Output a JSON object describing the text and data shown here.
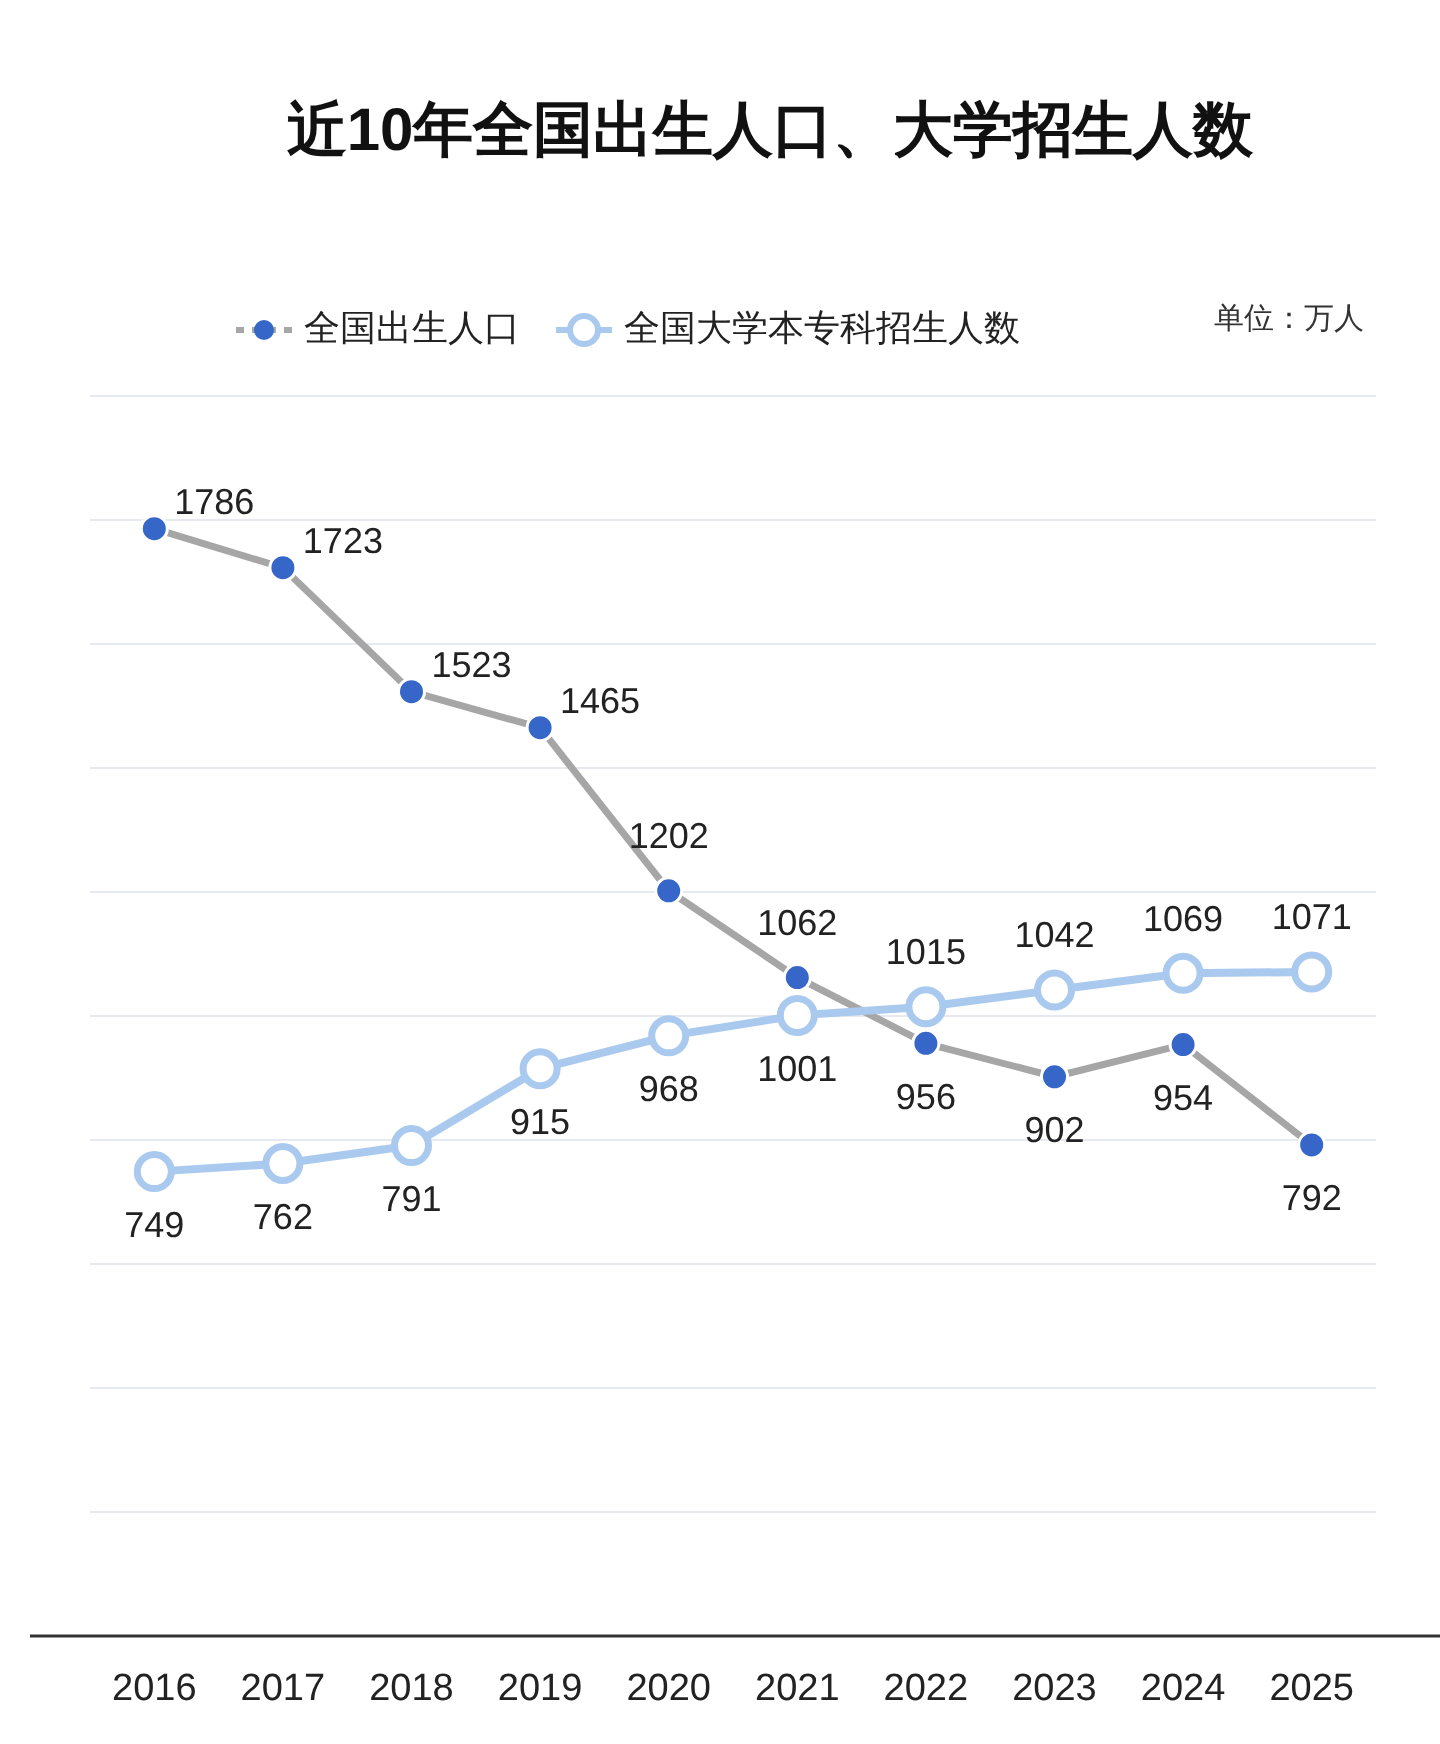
{
  "chart_data": {
    "type": "line",
    "title": "近10年全国出生人口、大学招生人数",
    "categories": [
      "2016",
      "2017",
      "2018",
      "2019",
      "2020",
      "2021",
      "2022",
      "2023",
      "2024",
      "2025"
    ],
    "series": [
      {
        "name": "全国出生人口",
        "color": "#3566c8",
        "values": [
          1786,
          1723,
          1523,
          1465,
          1202,
          1062,
          956,
          902,
          954,
          792
        ]
      },
      {
        "name": "全国大学本专科招生人数",
        "color": "#a9c9ee",
        "values": [
          749,
          762,
          791,
          915,
          968,
          1001,
          1015,
          1042,
          1069,
          1071
        ]
      }
    ],
    "ylim": [
      0,
      2000
    ],
    "yticks": [
      {
        "value": 0,
        "label": null
      },
      {
        "value": 200,
        "label": null
      },
      {
        "value": 400,
        "label": null
      },
      {
        "value": 600,
        "label": null
      },
      {
        "value": 800,
        "label": null
      },
      {
        "value": 1000,
        "label": null
      },
      {
        "value": 1200,
        "label": null
      },
      {
        "value": 1400,
        "label": null
      },
      {
        "value": 1600,
        "label": null
      },
      {
        "value": 1800,
        "label": null
      },
      {
        "value": 2000,
        "label": null
      }
    ],
    "tick_labels": "x",
    "grid": "y",
    "legend": "top",
    "marker": "circle",
    "line_style": "solid",
    "data_labels": true,
    "annotations": [
      "单位：万人"
    ]
  }
}
